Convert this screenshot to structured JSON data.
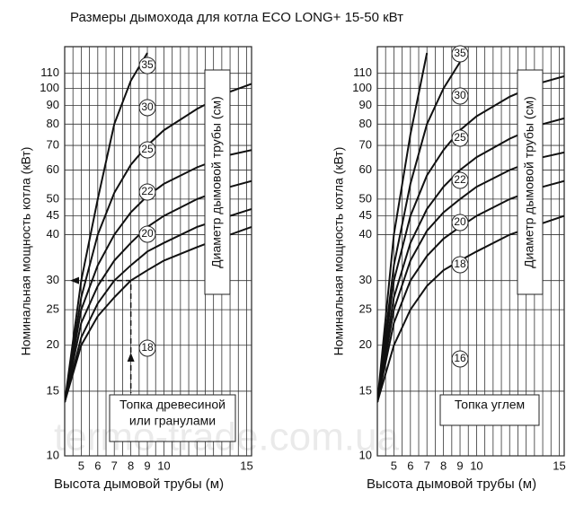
{
  "chart_data": [
    {
      "type": "line",
      "title": "Размеры дымохода для котла ECO LONG+ 15-50 кВт",
      "x_label": "Высота дымовой трубы (м)",
      "y_label": "Номинальная мощность котла (кВт)",
      "legend_title": "Диаметр дымовой трубы (см)",
      "note": [
        "Топка древесиной",
        "или гранулами"
      ],
      "watermark": "termo-trade.com.ua",
      "y_log": true,
      "xlim": [
        4,
        15.3
      ],
      "ylim": [
        10,
        130
      ],
      "xticks": [
        5,
        6,
        7,
        8,
        9,
        10,
        15
      ],
      "yticks": [
        10,
        15,
        20,
        25,
        30,
        40,
        45,
        50,
        60,
        70,
        80,
        90,
        100,
        110
      ],
      "xgrid": [
        4.5,
        5.5,
        6.5,
        7.5,
        8.5,
        9.5,
        10.5,
        11,
        11.5,
        12,
        12.5,
        13,
        13.5,
        14,
        14.5
      ],
      "example_point": {
        "x": 8,
        "y": 30
      },
      "color": "#111111",
      "x": [
        4,
        5,
        6,
        7,
        8,
        9,
        10,
        12,
        14,
        15.3
      ],
      "series": [
        {
          "name": "35",
          "values": [
            14,
            30,
            50,
            80,
            105,
            125,
            null,
            null,
            null,
            null
          ]
        },
        {
          "name": "30",
          "values": [
            14,
            27,
            40,
            52,
            62,
            70,
            77,
            88,
            98,
            103
          ]
        },
        {
          "name": "25",
          "values": [
            14,
            25,
            33,
            40,
            46,
            51,
            55,
            61,
            66,
            68
          ]
        },
        {
          "name": "22",
          "values": [
            14,
            23,
            29,
            34,
            38,
            42,
            45,
            50,
            54,
            56
          ]
        },
        {
          "name": "20",
          "values": [
            14,
            21,
            26,
            30,
            33,
            36,
            38,
            42,
            45,
            47
          ]
        },
        {
          "name": "18",
          "values": [
            14,
            20,
            24,
            27,
            30,
            32,
            34,
            37,
            40,
            42
          ]
        }
      ]
    },
    {
      "type": "line",
      "x_label": "Высота дымовой трубы (м)",
      "y_label": "Номинальная мощность котла (кВт)",
      "legend_title": "Диаметр дымовой трубы (см)",
      "note": [
        "Топка углем"
      ],
      "y_log": true,
      "xlim": [
        4,
        15.3
      ],
      "ylim": [
        10,
        130
      ],
      "xticks": [
        5,
        6,
        7,
        8,
        9,
        10,
        15
      ],
      "yticks": [
        10,
        15,
        20,
        25,
        30,
        40,
        45,
        50,
        60,
        70,
        80,
        90,
        100,
        110
      ],
      "xgrid": [
        4.5,
        5.5,
        6.5,
        7.5,
        8.5,
        9.5,
        10.5,
        11,
        11.5,
        12,
        12.5,
        13,
        13.5,
        14,
        14.5
      ],
      "color": "#111111",
      "x": [
        4,
        5,
        6,
        7,
        8,
        9,
        10,
        12,
        14,
        15.3
      ],
      "series": [
        {
          "name": "35",
          "values": [
            14,
            40,
            75,
            125,
            null,
            null,
            null,
            null,
            null,
            null
          ]
        },
        {
          "name": "30",
          "values": [
            14,
            33,
            55,
            80,
            100,
            118,
            null,
            null,
            null,
            null
          ]
        },
        {
          "name": "25",
          "values": [
            14,
            30,
            45,
            58,
            68,
            77,
            84,
            95,
            104,
            108
          ]
        },
        {
          "name": "22",
          "values": [
            14,
            27,
            38,
            47,
            54,
            60,
            65,
            73,
            80,
            83
          ]
        },
        {
          "name": "20",
          "values": [
            14,
            25,
            34,
            41,
            46,
            50,
            54,
            60,
            65,
            67
          ]
        },
        {
          "name": "18",
          "values": [
            14,
            23,
            30,
            35,
            39,
            42,
            45,
            50,
            54,
            56
          ]
        },
        {
          "name": "16",
          "values": [
            14,
            20,
            25,
            29,
            32,
            34,
            36,
            40,
            43,
            45
          ]
        }
      ]
    }
  ]
}
